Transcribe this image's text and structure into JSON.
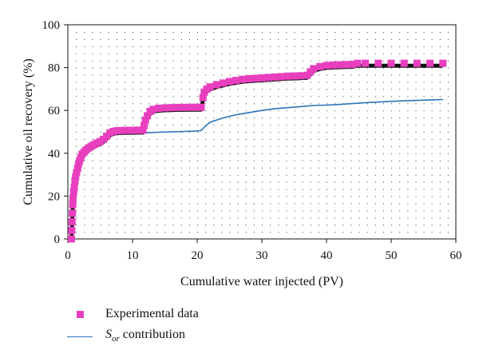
{
  "chart_data": {
    "type": "scatter",
    "xlabel": "Cumulative water injected (PV)",
    "ylabel": "Cumulative oil recovery (%)",
    "xlim": [
      0,
      60
    ],
    "ylim": [
      0,
      100
    ],
    "xticks": [
      0,
      10,
      20,
      30,
      40,
      50,
      60
    ],
    "yticks": [
      0,
      20,
      40,
      60,
      80,
      100
    ],
    "grid": "dotted",
    "legend_position": "bottom-left",
    "colors": {
      "experimental": "#e83fbf",
      "sor": "#2a73b8",
      "shadow": "#111111"
    },
    "series": [
      {
        "name": "Experimental data",
        "marker": "square",
        "points": [
          [
            0.55,
            0
          ],
          [
            0.6,
            4
          ],
          [
            0.65,
            8
          ],
          [
            0.7,
            12
          ],
          [
            0.75,
            16
          ],
          [
            0.8,
            19
          ],
          [
            0.9,
            22
          ],
          [
            1.0,
            24
          ],
          [
            1.1,
            27
          ],
          [
            1.2,
            29
          ],
          [
            1.35,
            31
          ],
          [
            1.5,
            33
          ],
          [
            1.65,
            35
          ],
          [
            1.8,
            36.5
          ],
          [
            2.0,
            38
          ],
          [
            2.2,
            39.5
          ],
          [
            2.5,
            40.5
          ],
          [
            2.8,
            41.5
          ],
          [
            3.2,
            42.5
          ],
          [
            3.6,
            43.2
          ],
          [
            4.0,
            44
          ],
          [
            4.5,
            44.8
          ],
          [
            5.0,
            45.5
          ],
          [
            5.5,
            46.5
          ],
          [
            6.0,
            48
          ],
          [
            6.5,
            49.5
          ],
          [
            7.0,
            50.2
          ],
          [
            7.5,
            50.5
          ],
          [
            8.0,
            50.6
          ],
          [
            9.0,
            50.7
          ],
          [
            10.0,
            50.7
          ],
          [
            11.0,
            50.8
          ],
          [
            11.6,
            50.8
          ],
          [
            11.8,
            53
          ],
          [
            12.0,
            55.5
          ],
          [
            12.3,
            57.5
          ],
          [
            12.7,
            59.5
          ],
          [
            13.2,
            60.5
          ],
          [
            14.0,
            61
          ],
          [
            15.0,
            61.2
          ],
          [
            16.0,
            61.3
          ],
          [
            17.0,
            61.4
          ],
          [
            18.0,
            61.4
          ],
          [
            19.0,
            61.5
          ],
          [
            20.0,
            61.5
          ],
          [
            20.6,
            61.5
          ],
          [
            20.9,
            66
          ],
          [
            21.1,
            68.5
          ],
          [
            21.5,
            70
          ],
          [
            22.0,
            71
          ],
          [
            23.0,
            72
          ],
          [
            24.0,
            72.8
          ],
          [
            25.0,
            73.5
          ],
          [
            26.0,
            74
          ],
          [
            27.0,
            74.5
          ],
          [
            28.0,
            74.8
          ],
          [
            29.0,
            75
          ],
          [
            30.0,
            75.2
          ],
          [
            31.0,
            75.4
          ],
          [
            32.0,
            75.6
          ],
          [
            33.0,
            75.8
          ],
          [
            34.0,
            76
          ],
          [
            35.0,
            76.1
          ],
          [
            36.0,
            76.2
          ],
          [
            37.0,
            76.4
          ],
          [
            37.5,
            78
          ],
          [
            38.0,
            79.5
          ],
          [
            39.0,
            80.5
          ],
          [
            40.0,
            81
          ],
          [
            41.0,
            81.2
          ],
          [
            42.0,
            81.3
          ],
          [
            43.0,
            81.4
          ],
          [
            44.0,
            81.5
          ],
          [
            44.8,
            82
          ],
          [
            46.0,
            82
          ],
          [
            48.0,
            82
          ],
          [
            50.0,
            82
          ],
          [
            52.0,
            82
          ],
          [
            54.0,
            82
          ],
          [
            56.0,
            82
          ],
          [
            58.0,
            82
          ]
        ]
      },
      {
        "name": "S_or contribution",
        "marker": "line",
        "points": [
          [
            0.5,
            0
          ],
          [
            0.55,
            10
          ],
          [
            0.7,
            20
          ],
          [
            1.0,
            27
          ],
          [
            1.5,
            33
          ],
          [
            2.0,
            37
          ],
          [
            3.0,
            41
          ],
          [
            4.0,
            43
          ],
          [
            5.0,
            44.5
          ],
          [
            6.0,
            46.5
          ],
          [
            7.0,
            48.5
          ],
          [
            8.0,
            49
          ],
          [
            10.0,
            49.3
          ],
          [
            12.0,
            49.6
          ],
          [
            14.0,
            49.8
          ],
          [
            16.0,
            50
          ],
          [
            18.0,
            50.2
          ],
          [
            20.0,
            50.4
          ],
          [
            20.6,
            50.6
          ],
          [
            21.2,
            52.5
          ],
          [
            22.0,
            54.5
          ],
          [
            24.0,
            56.5
          ],
          [
            26.0,
            58
          ],
          [
            28.0,
            59
          ],
          [
            30.0,
            60
          ],
          [
            32.0,
            60.8
          ],
          [
            34.0,
            61.3
          ],
          [
            36.0,
            61.8
          ],
          [
            38.0,
            62.3
          ],
          [
            40.0,
            62.5
          ],
          [
            42.0,
            62.8
          ],
          [
            44.0,
            63.2
          ],
          [
            46.0,
            63.6
          ],
          [
            48.0,
            63.9
          ],
          [
            50.0,
            64.2
          ],
          [
            52.0,
            64.5
          ],
          [
            54.0,
            64.7
          ],
          [
            56.0,
            64.9
          ],
          [
            58.0,
            65.1
          ]
        ]
      }
    ]
  },
  "legend": {
    "experimental_label": "Experimental data",
    "sor_symbol": "S",
    "sor_subscript": "or",
    "sor_rest": " contribution"
  }
}
